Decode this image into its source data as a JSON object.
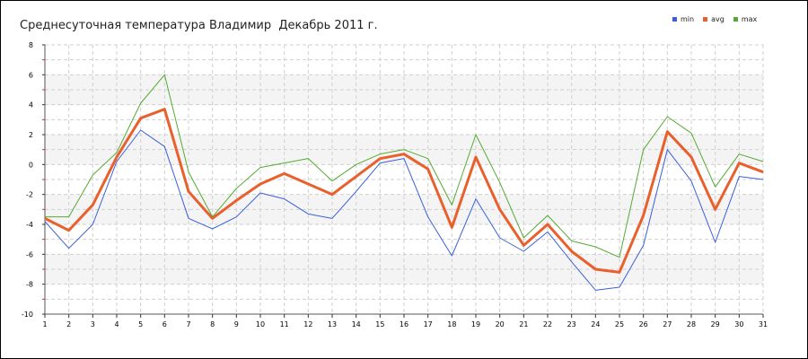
{
  "chart_data": {
    "type": "line",
    "title": "Среднесуточная температура Владимир  Декабрь 2011 г.",
    "x": [
      1,
      2,
      3,
      4,
      5,
      6,
      7,
      8,
      9,
      10,
      11,
      12,
      13,
      14,
      15,
      16,
      17,
      18,
      19,
      20,
      21,
      22,
      23,
      24,
      25,
      26,
      27,
      28,
      29,
      30,
      31
    ],
    "xlim": [
      1,
      31
    ],
    "ylim": [
      -10,
      8
    ],
    "yticks": [
      -10,
      -8,
      -6,
      -4,
      -2,
      0,
      2,
      4,
      6,
      8
    ],
    "grid": true,
    "legend_placement": "top-right",
    "series": [
      {
        "name": "min",
        "color": "#3b5fd9",
        "values": [
          -3.8,
          -5.6,
          -4.0,
          0.2,
          2.3,
          1.2,
          -3.6,
          -4.3,
          -3.5,
          -1.9,
          -2.3,
          -3.3,
          -3.6,
          -1.8,
          0.1,
          0.4,
          -3.5,
          -6.1,
          -2.3,
          -4.9,
          -5.8,
          -4.5,
          -6.5,
          -8.4,
          -8.2,
          -5.4,
          1.0,
          -1.1,
          -5.2,
          -0.8,
          -1.0
        ]
      },
      {
        "name": "avg",
        "color": "#e8602c",
        "values": [
          -3.6,
          -4.4,
          -2.7,
          0.5,
          3.1,
          3.7,
          -1.8,
          -3.6,
          -2.4,
          -1.3,
          -0.6,
          -1.3,
          -2.0,
          -0.8,
          0.4,
          0.7,
          -0.3,
          -4.2,
          0.5,
          -3.0,
          -5.4,
          -4.0,
          -5.8,
          -7.0,
          -7.2,
          -3.4,
          2.2,
          0.5,
          -3.0,
          0.1,
          -0.5
        ]
      },
      {
        "name": "max",
        "color": "#55aa33",
        "values": [
          -3.5,
          -3.5,
          -0.7,
          0.8,
          4.1,
          6.0,
          -0.5,
          -3.5,
          -1.6,
          -0.2,
          0.1,
          0.4,
          -1.1,
          0.0,
          0.7,
          1.0,
          0.4,
          -2.7,
          2.0,
          -1.2,
          -4.9,
          -3.4,
          -5.1,
          -5.5,
          -6.2,
          1.0,
          3.2,
          2.1,
          -1.5,
          0.7,
          0.2
        ]
      }
    ]
  }
}
